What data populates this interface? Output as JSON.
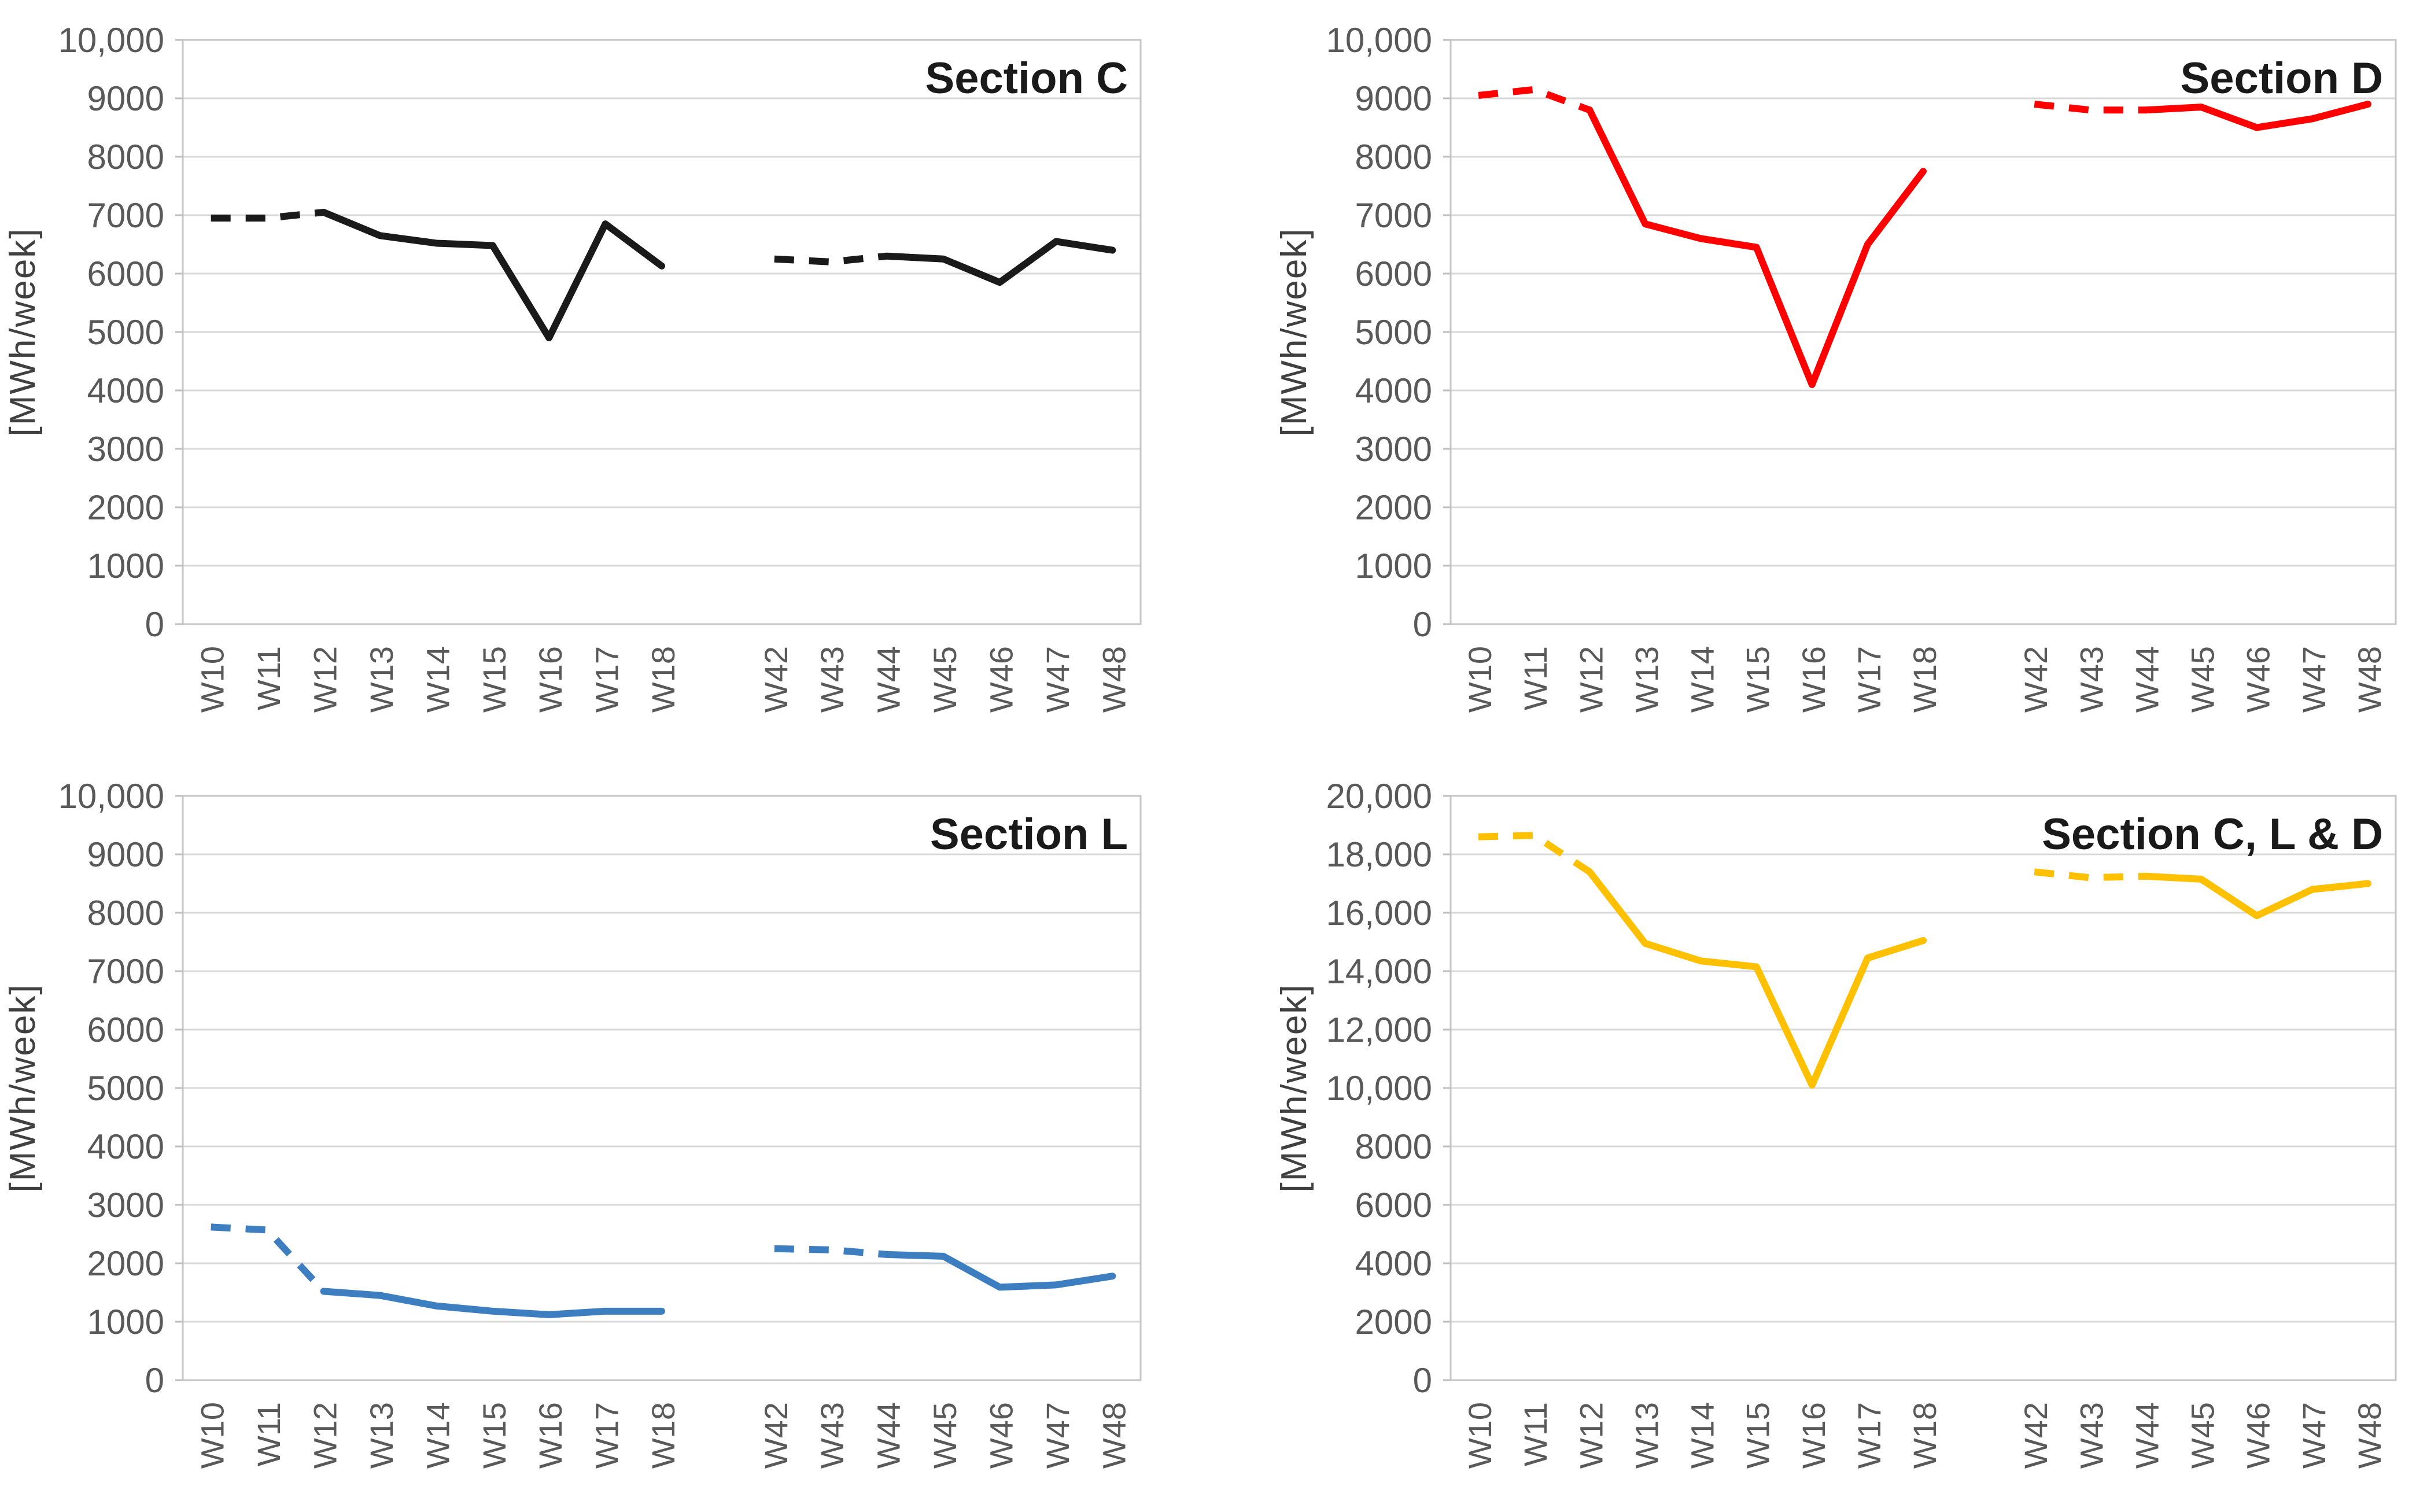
{
  "page": {
    "background": "#FFFFFF",
    "grid_color": "#D9D9D9",
    "plot_border_color": "#C6C6C6",
    "tick_mark_color": "#BFBFBF",
    "tick_label_color": "#595959",
    "axis_title_color": "#404040",
    "title_color": "#1A1A1A"
  },
  "chart_data": [
    {
      "type": "line",
      "title": "Section C",
      "ylabel": "[MWh/week]",
      "line_color": "#1A1A1A",
      "ylim": [
        0,
        10000
      ],
      "grid": true,
      "legend_position": "none",
      "gap_slots": 1,
      "yticks": [
        {
          "value": 0,
          "label": "0"
        },
        {
          "value": 1000,
          "label": "1000"
        },
        {
          "value": 2000,
          "label": "2000"
        },
        {
          "value": 3000,
          "label": "3000"
        },
        {
          "value": 4000,
          "label": "4000"
        },
        {
          "value": 5000,
          "label": "5000"
        },
        {
          "value": 6000,
          "label": "6000"
        },
        {
          "value": 7000,
          "label": "7000"
        },
        {
          "value": 8000,
          "label": "8000"
        },
        {
          "value": 9000,
          "label": "9000"
        },
        {
          "value": 10000,
          "label": "10,000"
        }
      ],
      "groups": [
        {
          "categories": [
            "W10",
            "W11",
            "W12",
            "W13",
            "W14",
            "W15",
            "W16",
            "W17",
            "W18"
          ],
          "values": [
            6950,
            6950,
            7050,
            6650,
            6520,
            6480,
            4900,
            6850,
            6130
          ],
          "dashed_segments": 2
        },
        {
          "categories": [
            "W42",
            "W43",
            "W44",
            "W45",
            "W46",
            "W47",
            "W48"
          ],
          "values": [
            6250,
            6200,
            6300,
            6250,
            5850,
            6550,
            6400
          ],
          "dashed_segments": 2
        }
      ]
    },
    {
      "type": "line",
      "title": "Section D",
      "ylabel": "[MWh/week]",
      "line_color": "#FF0000",
      "ylim": [
        0,
        10000
      ],
      "grid": true,
      "legend_position": "none",
      "gap_slots": 1,
      "yticks": [
        {
          "value": 0,
          "label": "0"
        },
        {
          "value": 1000,
          "label": "1000"
        },
        {
          "value": 2000,
          "label": "2000"
        },
        {
          "value": 3000,
          "label": "3000"
        },
        {
          "value": 4000,
          "label": "4000"
        },
        {
          "value": 5000,
          "label": "5000"
        },
        {
          "value": 6000,
          "label": "6000"
        },
        {
          "value": 7000,
          "label": "7000"
        },
        {
          "value": 8000,
          "label": "8000"
        },
        {
          "value": 9000,
          "label": "9000"
        },
        {
          "value": 10000,
          "label": "10,000"
        }
      ],
      "groups": [
        {
          "categories": [
            "W10",
            "W11",
            "W12",
            "W13",
            "W14",
            "W15",
            "W16",
            "W17",
            "W18"
          ],
          "values": [
            9050,
            9150,
            8800,
            6850,
            6600,
            6450,
            4100,
            6500,
            7750
          ],
          "dashed_segments": 2
        },
        {
          "categories": [
            "W42",
            "W43",
            "W44",
            "W45",
            "W46",
            "W47",
            "W48"
          ],
          "values": [
            8900,
            8800,
            8800,
            8850,
            8500,
            8650,
            8900
          ],
          "dashed_segments": 2
        }
      ]
    },
    {
      "type": "line",
      "title": "Section L",
      "ylabel": "[MWh/week]",
      "line_color": "#3D7EC1",
      "ylim": [
        0,
        10000
      ],
      "grid": true,
      "legend_position": "none",
      "gap_slots": 1,
      "yticks": [
        {
          "value": 0,
          "label": "0"
        },
        {
          "value": 1000,
          "label": "1000"
        },
        {
          "value": 2000,
          "label": "2000"
        },
        {
          "value": 3000,
          "label": "3000"
        },
        {
          "value": 4000,
          "label": "4000"
        },
        {
          "value": 5000,
          "label": "5000"
        },
        {
          "value": 6000,
          "label": "6000"
        },
        {
          "value": 7000,
          "label": "7000"
        },
        {
          "value": 8000,
          "label": "8000"
        },
        {
          "value": 9000,
          "label": "9000"
        },
        {
          "value": 10000,
          "label": "10,000"
        }
      ],
      "groups": [
        {
          "categories": [
            "W10",
            "W11",
            "W12",
            "W13",
            "W14",
            "W15",
            "W16",
            "W17",
            "W18"
          ],
          "values": [
            2620,
            2570,
            1520,
            1450,
            1270,
            1180,
            1120,
            1180,
            1180
          ],
          "dashed_segments": 2
        },
        {
          "categories": [
            "W42",
            "W43",
            "W44",
            "W45",
            "W46",
            "W47",
            "W48"
          ],
          "values": [
            2250,
            2230,
            2150,
            2120,
            1590,
            1630,
            1780
          ],
          "dashed_segments": 2
        }
      ]
    },
    {
      "type": "line",
      "title": "Section C, L & D",
      "ylabel": "[MWh/week]",
      "line_color": "#FFC000",
      "ylim": [
        0,
        20000
      ],
      "grid": true,
      "legend_position": "none",
      "gap_slots": 1,
      "yticks": [
        {
          "value": 0,
          "label": "0"
        },
        {
          "value": 2000,
          "label": "2000"
        },
        {
          "value": 4000,
          "label": "4000"
        },
        {
          "value": 6000,
          "label": "6000"
        },
        {
          "value": 8000,
          "label": "8000"
        },
        {
          "value": 10000,
          "label": "10,000"
        },
        {
          "value": 12000,
          "label": "12,000"
        },
        {
          "value": 14000,
          "label": "14,000"
        },
        {
          "value": 16000,
          "label": "16,000"
        },
        {
          "value": 18000,
          "label": "18,000"
        },
        {
          "value": 20000,
          "label": "20,000"
        }
      ],
      "groups": [
        {
          "categories": [
            "W10",
            "W11",
            "W12",
            "W13",
            "W14",
            "W15",
            "W16",
            "W17",
            "W18"
          ],
          "values": [
            18600,
            18650,
            17400,
            14950,
            14350,
            14150,
            10100,
            14450,
            15050
          ],
          "dashed_segments": 2
        },
        {
          "categories": [
            "W42",
            "W43",
            "W44",
            "W45",
            "W46",
            "W47",
            "W48"
          ],
          "values": [
            17400,
            17200,
            17250,
            17150,
            15900,
            16800,
            17000
          ],
          "dashed_segments": 2
        }
      ]
    }
  ]
}
